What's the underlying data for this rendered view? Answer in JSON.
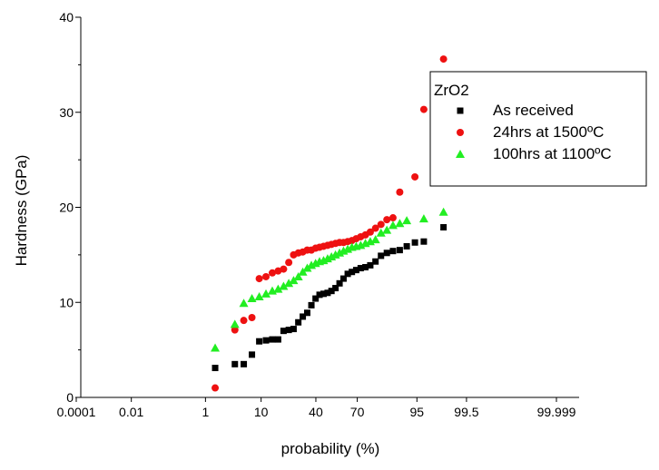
{
  "chart_data": {
    "type": "scatter",
    "title": "",
    "xlabel": "probability (%)",
    "ylabel": "Hardness (GPa)",
    "x_scale": "normal-probability",
    "xlim": [
      0.0001,
      99.999
    ],
    "ylim": [
      0,
      40
    ],
    "x_ticks": [
      {
        "value": 0.0001,
        "label": "0.0001"
      },
      {
        "value": 0.01,
        "label": "0.01"
      },
      {
        "value": 1,
        "label": "1"
      },
      {
        "value": 10,
        "label": "10"
      },
      {
        "value": 40,
        "label": "40"
      },
      {
        "value": 70,
        "label": "70"
      },
      {
        "value": 95,
        "label": "95"
      },
      {
        "value": 99.5,
        "label": "99.5"
      },
      {
        "value": 99.999,
        "label": "99.999"
      }
    ],
    "y_ticks": [
      0,
      10,
      20,
      30,
      40
    ],
    "grid": false,
    "legend": {
      "title": "ZrO2",
      "position": "top-right"
    },
    "series": [
      {
        "name": "As received",
        "marker": "square",
        "color": "#000000",
        "points": [
          [
            1.6,
            3.1
          ],
          [
            3.8,
            3.5
          ],
          [
            5.4,
            3.5
          ],
          [
            7.3,
            4.5
          ],
          [
            9.4,
            5.9
          ],
          [
            11.7,
            6.0
          ],
          [
            14.2,
            6.1
          ],
          [
            16.8,
            6.1
          ],
          [
            19.5,
            7.0
          ],
          [
            22.3,
            7.1
          ],
          [
            25.1,
            7.2
          ],
          [
            28.0,
            7.9
          ],
          [
            30.9,
            8.5
          ],
          [
            33.9,
            8.9
          ],
          [
            36.8,
            9.7
          ],
          [
            39.8,
            10.4
          ],
          [
            42.7,
            10.8
          ],
          [
            45.7,
            10.9
          ],
          [
            48.7,
            11.0
          ],
          [
            51.6,
            11.2
          ],
          [
            54.6,
            11.5
          ],
          [
            57.6,
            12.0
          ],
          [
            60.5,
            12.5
          ],
          [
            63.5,
            13.0
          ],
          [
            66.4,
            13.2
          ],
          [
            69.3,
            13.4
          ],
          [
            72.2,
            13.6
          ],
          [
            75.1,
            13.7
          ],
          [
            77.9,
            13.9
          ],
          [
            80.7,
            14.3
          ],
          [
            83.4,
            14.9
          ],
          [
            86.0,
            15.2
          ],
          [
            88.4,
            15.4
          ],
          [
            90.7,
            15.5
          ],
          [
            92.7,
            15.9
          ],
          [
            94.6,
            16.3
          ],
          [
            96.2,
            16.4
          ],
          [
            98.4,
            17.9
          ]
        ]
      },
      {
        "name": "24hrs at 1500ºC",
        "marker": "circle",
        "color": "#ee1111",
        "points": [
          [
            1.6,
            1.0
          ],
          [
            3.8,
            7.1
          ],
          [
            5.4,
            8.1
          ],
          [
            7.3,
            8.4
          ],
          [
            9.4,
            12.5
          ],
          [
            11.7,
            12.7
          ],
          [
            14.2,
            13.1
          ],
          [
            16.8,
            13.3
          ],
          [
            19.5,
            13.5
          ],
          [
            22.3,
            14.2
          ],
          [
            25.1,
            15.0
          ],
          [
            28.0,
            15.2
          ],
          [
            30.9,
            15.3
          ],
          [
            33.9,
            15.5
          ],
          [
            36.8,
            15.5
          ],
          [
            39.8,
            15.7
          ],
          [
            42.7,
            15.8
          ],
          [
            45.7,
            15.9
          ],
          [
            48.7,
            16.0
          ],
          [
            51.6,
            16.1
          ],
          [
            54.6,
            16.2
          ],
          [
            57.6,
            16.3
          ],
          [
            60.5,
            16.3
          ],
          [
            63.5,
            16.4
          ],
          [
            66.4,
            16.5
          ],
          [
            69.3,
            16.7
          ],
          [
            72.2,
            16.9
          ],
          [
            75.1,
            17.1
          ],
          [
            77.9,
            17.4
          ],
          [
            80.7,
            17.8
          ],
          [
            83.4,
            18.2
          ],
          [
            86.0,
            18.7
          ],
          [
            88.4,
            18.9
          ],
          [
            90.7,
            21.6
          ],
          [
            94.6,
            23.2
          ],
          [
            96.2,
            30.3
          ],
          [
            98.4,
            35.6
          ]
        ]
      },
      {
        "name": "100hrs at 1100ºC",
        "marker": "triangle",
        "color": "#22ee22",
        "points": [
          [
            1.6,
            5.2
          ],
          [
            3.8,
            7.7
          ],
          [
            5.4,
            9.9
          ],
          [
            7.3,
            10.4
          ],
          [
            9.4,
            10.6
          ],
          [
            11.7,
            10.9
          ],
          [
            14.2,
            11.2
          ],
          [
            16.8,
            11.4
          ],
          [
            19.5,
            11.7
          ],
          [
            22.3,
            12.0
          ],
          [
            25.1,
            12.3
          ],
          [
            28.0,
            12.7
          ],
          [
            30.9,
            13.2
          ],
          [
            33.9,
            13.6
          ],
          [
            36.8,
            13.9
          ],
          [
            39.8,
            14.1
          ],
          [
            42.7,
            14.3
          ],
          [
            45.7,
            14.4
          ],
          [
            48.7,
            14.6
          ],
          [
            51.6,
            14.8
          ],
          [
            54.6,
            15.0
          ],
          [
            57.6,
            15.2
          ],
          [
            60.5,
            15.4
          ],
          [
            63.5,
            15.6
          ],
          [
            66.4,
            15.8
          ],
          [
            69.3,
            15.9
          ],
          [
            72.2,
            16.0
          ],
          [
            75.1,
            16.2
          ],
          [
            77.9,
            16.4
          ],
          [
            80.7,
            16.6
          ],
          [
            83.4,
            17.3
          ],
          [
            86.0,
            17.6
          ],
          [
            88.4,
            18.1
          ],
          [
            90.7,
            18.3
          ],
          [
            92.7,
            18.6
          ],
          [
            96.2,
            18.8
          ],
          [
            98.4,
            19.5
          ]
        ]
      }
    ]
  }
}
